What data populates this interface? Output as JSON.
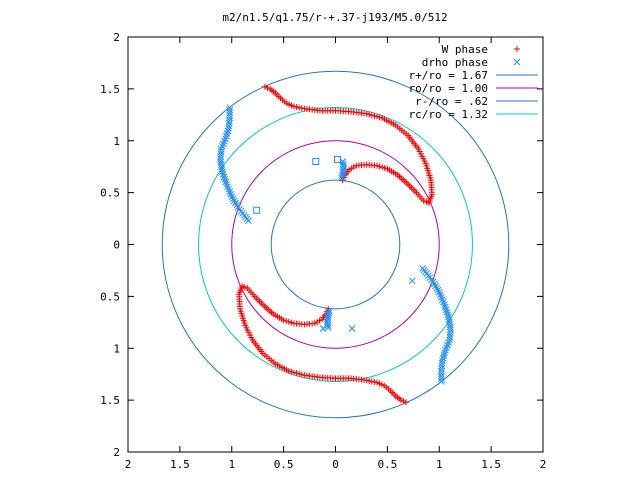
{
  "title": "m2/n1.5/q1.75/r-+.37-j193/M5.0/512",
  "chart_data": {
    "type": "scatter",
    "title": "m2/n1.5/q1.75/r-+.37-j193/M5.0/512",
    "xlabel": "",
    "ylabel": "",
    "xlim": [
      -2,
      2
    ],
    "ylim": [
      -2,
      2
    ],
    "x_tick_labels": [
      "2",
      "1.5",
      "1",
      "0.5",
      "0",
      "0.5",
      "1",
      "1.5",
      "2"
    ],
    "y_tick_labels": [
      "2",
      "1.5",
      "1",
      "0.5",
      "0",
      "0.5",
      "1",
      "1.5",
      "2"
    ],
    "grid": false,
    "legend_position": "top-right",
    "legend": [
      {
        "label": "W phase",
        "kind": "marker",
        "marker": "plus",
        "color": "#ff0000"
      },
      {
        "label": "drho phase",
        "kind": "marker",
        "marker": "cross",
        "color": "#1e8fff"
      },
      {
        "label": "r+/ro = 1.67",
        "kind": "line",
        "color": "#1f78c8"
      },
      {
        "label": "ro/ro = 1.00",
        "kind": "line",
        "color": "#b000b0"
      },
      {
        "label": "r-/ro = .62",
        "kind": "line",
        "color": "#1f78c8"
      },
      {
        "label": "rc/ro = 1.32",
        "kind": "line",
        "color": "#00cccc"
      }
    ],
    "circles": [
      {
        "radius": 1.67,
        "color": "#1f78c8"
      },
      {
        "radius": 1.0,
        "color": "#b000b0"
      },
      {
        "radius": 0.62,
        "color": "#1f78c8"
      },
      {
        "radius": 1.32,
        "color": "#00cccc"
      }
    ],
    "series": [
      {
        "name": "W phase",
        "color": "#ff0000",
        "marker": "plus",
        "points": [
          [
            -0.68,
            1.52
          ],
          [
            -0.63,
            1.5
          ],
          [
            -0.58,
            1.46
          ],
          [
            -0.53,
            1.41
          ],
          [
            -0.47,
            1.36
          ],
          [
            -0.4,
            1.33
          ],
          [
            -0.3,
            1.31
          ],
          [
            -0.15,
            1.29
          ],
          [
            0.0,
            1.29
          ],
          [
            0.15,
            1.28
          ],
          [
            0.3,
            1.26
          ],
          [
            0.45,
            1.22
          ],
          [
            0.58,
            1.15
          ],
          [
            0.7,
            1.05
          ],
          [
            0.8,
            0.92
          ],
          [
            0.87,
            0.78
          ],
          [
            0.92,
            0.62
          ],
          [
            0.93,
            0.48
          ],
          [
            0.9,
            0.4
          ],
          [
            0.85,
            0.42
          ],
          [
            0.78,
            0.5
          ],
          [
            0.7,
            0.58
          ],
          [
            0.6,
            0.67
          ],
          [
            0.5,
            0.73
          ],
          [
            0.4,
            0.76
          ],
          [
            0.3,
            0.77
          ],
          [
            0.2,
            0.76
          ],
          [
            0.13,
            0.72
          ],
          [
            0.09,
            0.67
          ],
          [
            0.07,
            0.62
          ],
          [
            0.68,
            -1.52
          ],
          [
            0.63,
            -1.5
          ],
          [
            0.58,
            -1.46
          ],
          [
            0.53,
            -1.41
          ],
          [
            0.47,
            -1.36
          ],
          [
            0.4,
            -1.33
          ],
          [
            0.3,
            -1.31
          ],
          [
            0.15,
            -1.29
          ],
          [
            0.0,
            -1.29
          ],
          [
            -0.15,
            -1.28
          ],
          [
            -0.3,
            -1.26
          ],
          [
            -0.45,
            -1.22
          ],
          [
            -0.58,
            -1.15
          ],
          [
            -0.7,
            -1.05
          ],
          [
            -0.8,
            -0.92
          ],
          [
            -0.87,
            -0.78
          ],
          [
            -0.92,
            -0.62
          ],
          [
            -0.93,
            -0.48
          ],
          [
            -0.9,
            -0.4
          ],
          [
            -0.85,
            -0.42
          ],
          [
            -0.78,
            -0.5
          ],
          [
            -0.7,
            -0.58
          ],
          [
            -0.6,
            -0.67
          ],
          [
            -0.5,
            -0.73
          ],
          [
            -0.4,
            -0.76
          ],
          [
            -0.3,
            -0.77
          ],
          [
            -0.2,
            -0.76
          ],
          [
            -0.13,
            -0.72
          ],
          [
            -0.09,
            -0.67
          ],
          [
            -0.07,
            -0.62
          ]
        ]
      },
      {
        "name": "drho phase",
        "color": "#1e8fff",
        "marker": "cross",
        "points": [
          [
            -1.02,
            1.32
          ],
          [
            -1.02,
            1.22
          ],
          [
            -1.03,
            1.12
          ],
          [
            -1.06,
            1.02
          ],
          [
            -1.1,
            0.92
          ],
          [
            -1.11,
            0.82
          ],
          [
            -1.09,
            0.7
          ],
          [
            -1.05,
            0.58
          ],
          [
            -1.0,
            0.46
          ],
          [
            -0.94,
            0.36
          ],
          [
            -0.88,
            0.28
          ],
          [
            -0.84,
            0.23
          ],
          [
            0.07,
            0.8
          ],
          [
            0.08,
            0.74
          ],
          [
            0.07,
            0.68
          ],
          [
            0.06,
            0.64
          ],
          [
            1.02,
            -1.32
          ],
          [
            1.02,
            -1.22
          ],
          [
            1.03,
            -1.12
          ],
          [
            1.06,
            -1.02
          ],
          [
            1.1,
            -0.92
          ],
          [
            1.11,
            -0.82
          ],
          [
            1.09,
            -0.7
          ],
          [
            1.05,
            -0.58
          ],
          [
            1.0,
            -0.46
          ],
          [
            0.94,
            -0.36
          ],
          [
            0.88,
            -0.28
          ],
          [
            0.84,
            -0.23
          ],
          [
            -0.07,
            -0.8
          ],
          [
            -0.08,
            -0.74
          ],
          [
            -0.07,
            -0.68
          ],
          [
            -0.06,
            -0.64
          ],
          [
            0.74,
            -0.35
          ],
          [
            0.16,
            -0.81
          ],
          [
            -0.12,
            -0.81
          ]
        ]
      },
      {
        "name": "",
        "color": "#1e8fff",
        "marker": "square",
        "points": [
          [
            -0.19,
            0.8
          ],
          [
            0.02,
            0.82
          ],
          [
            -0.76,
            0.33
          ]
        ]
      }
    ]
  }
}
